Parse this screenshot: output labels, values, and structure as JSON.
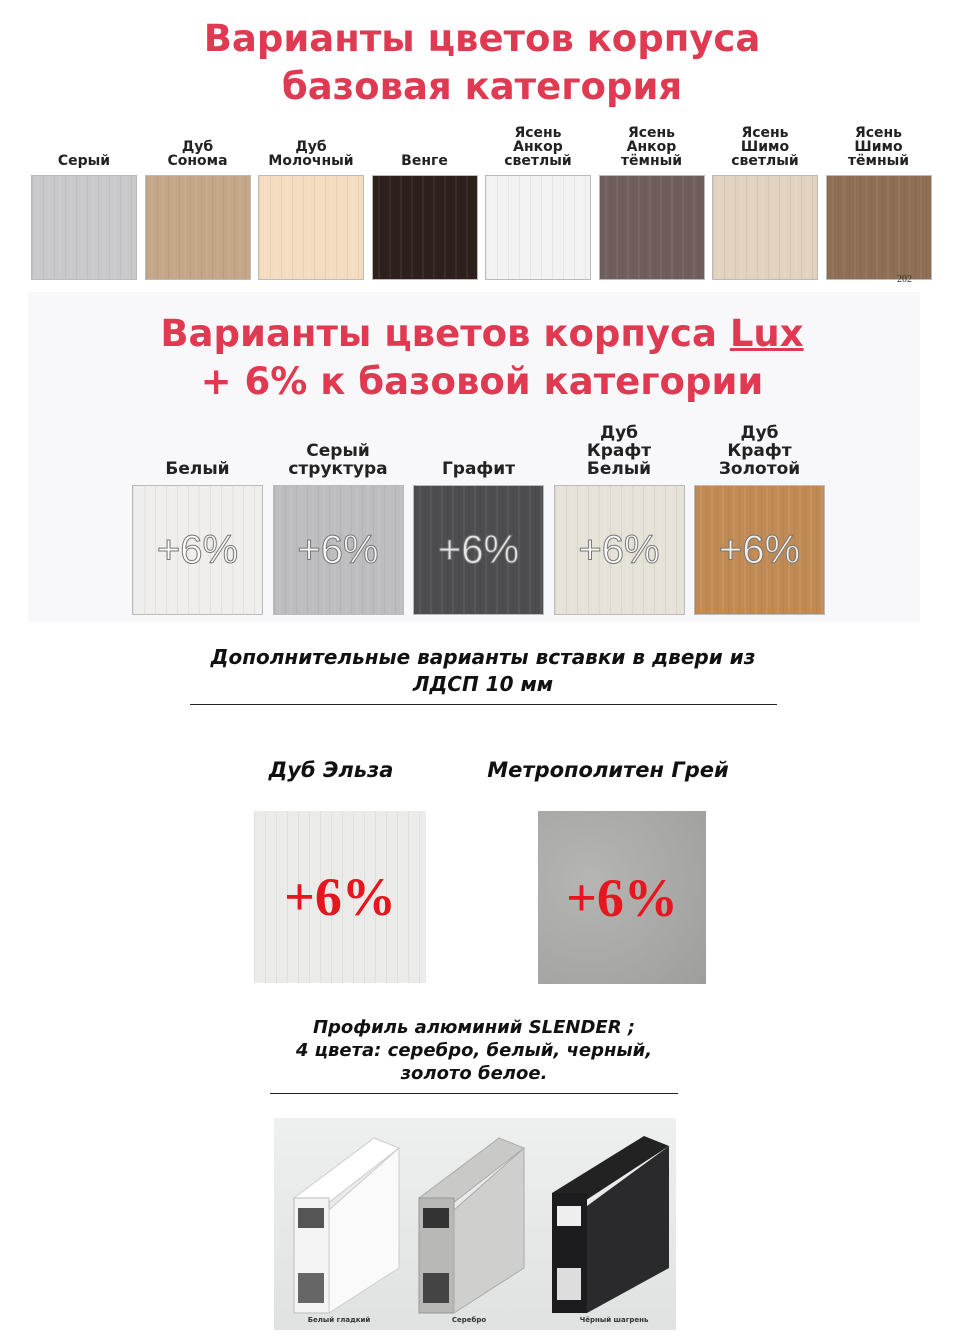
{
  "base": {
    "title_line1": "Варианты цветов корпуса",
    "title_line2": "базовая категория",
    "swatches": [
      {
        "label": "Серый",
        "color": "#c9c9cb"
      },
      {
        "label": "Дуб Сонома",
        "color": "#c4a688"
      },
      {
        "label": "Дуб Молочный",
        "color": "#f4dcc1"
      },
      {
        "label": "Венге",
        "color": "#2e201c"
      },
      {
        "label": "Ясень Анкор светлый",
        "color": "#f3f2f2"
      },
      {
        "label": "Ясень Анкор тёмный",
        "color": "#6f5e5c"
      },
      {
        "label": "Ясень Шимо светлый",
        "color": "#e1d3bf"
      },
      {
        "label": "Ясень Шимо тёмный",
        "color": "#8e6e54"
      }
    ],
    "corner_mark": "202"
  },
  "lux": {
    "title_line1": "Варианты цветов корпуса ",
    "title_lux": "Lux",
    "title_line2": "+ 6% к базовой категории",
    "swatches": [
      {
        "label": "Белый",
        "color": "#efeeec",
        "badge": "+6%"
      },
      {
        "label": "Серый структура",
        "color": "#bdbdbf",
        "badge": "+6%"
      },
      {
        "label": "Графит",
        "color": "#4d4d4f",
        "badge": "+6%"
      },
      {
        "label": "Дуб Крафт Белый",
        "color": "#e6e2d8",
        "badge": "+6%"
      },
      {
        "label": "Дуб Крафт Золотой",
        "color": "#c08a55",
        "badge": "+6%"
      }
    ]
  },
  "inserts": {
    "heading_line1": "Дополнительные варианты вставки в двери из",
    "heading_line2": "ЛДСП 10 мм",
    "items": [
      {
        "label": "Дуб Эльза",
        "color": "#ebebea",
        "badge": "+6%"
      },
      {
        "label": "Метрополитен Грей",
        "color": "#a9a9a7",
        "badge": "+6%"
      }
    ]
  },
  "profile": {
    "line1": "Профиль алюминий SLENDER ;",
    "line2": "4 цвета: серебро, белый, черный,",
    "line3": "золото белое.",
    "captions": [
      "Белый гладкий",
      "Серебро",
      "Чёрный шагрень"
    ]
  }
}
